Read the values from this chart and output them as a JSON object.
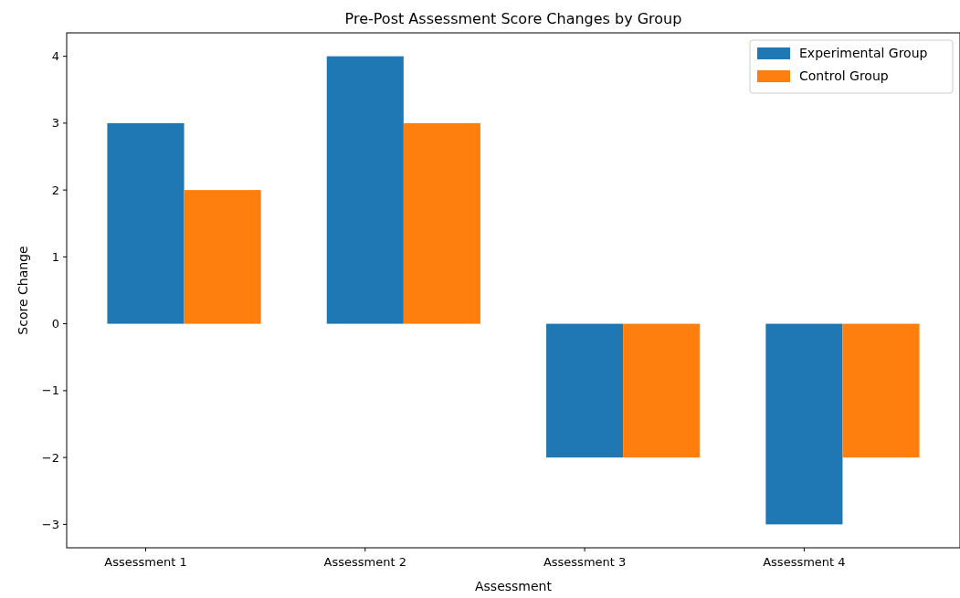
{
  "chart_data": {
    "type": "bar",
    "title": "Pre-Post Assessment Score Changes by Group",
    "xlabel": "Assessment",
    "ylabel": "Score Change",
    "categories": [
      "Assessment 1",
      "Assessment 2",
      "Assessment 3",
      "Assessment 4"
    ],
    "series": [
      {
        "name": "Experimental Group",
        "color": "#1f77b4",
        "values": [
          3,
          4,
          -2,
          -3
        ]
      },
      {
        "name": "Control Group",
        "color": "#ff7f0e",
        "values": [
          2,
          3,
          -2,
          -2
        ]
      }
    ],
    "ylim": [
      -3.35,
      4.35
    ],
    "yticks": [
      {
        "value": -3,
        "label": "−3"
      },
      {
        "value": -2,
        "label": "−2"
      },
      {
        "value": -1,
        "label": "−1"
      },
      0,
      1,
      2,
      3,
      4
    ],
    "grid": false,
    "legend": "top right"
  }
}
